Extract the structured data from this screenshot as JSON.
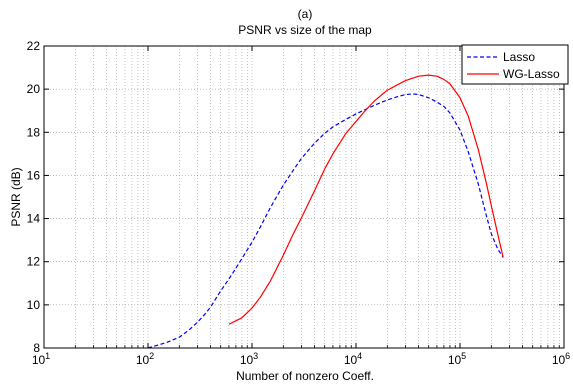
{
  "chart_data": {
    "type": "line",
    "panel_label": "(a)",
    "title": "PSNR vs size of the map",
    "xlabel": "Number of nonzero Coeff.",
    "ylabel": "PSNR (dB)",
    "xscale": "log",
    "xlim": [
      10,
      1000000
    ],
    "ylim": [
      8,
      22
    ],
    "xtick_base": "10",
    "xtick_exponents": [
      "1",
      "2",
      "3",
      "4",
      "5",
      "6"
    ],
    "yticks": [
      "8",
      "10",
      "12",
      "14",
      "16",
      "18",
      "20",
      "22"
    ],
    "grid": "dotted",
    "legend_position": "top-right",
    "series": [
      {
        "name": "Lasso",
        "color": "#0000ff",
        "style": "dashed",
        "x": [
          100,
          150,
          200,
          250,
          300,
          350,
          400,
          500,
          600,
          700,
          800,
          1000,
          1200,
          1500,
          2000,
          2500,
          3000,
          4000,
          5000,
          6000,
          8000,
          10000,
          15000,
          20000,
          25000,
          30000,
          35000,
          40000,
          50000,
          60000,
          70000,
          80000,
          100000,
          120000,
          150000,
          180000,
          200000,
          230000,
          260000
        ],
        "y": [
          8.0,
          8.25,
          8.5,
          8.85,
          9.2,
          9.55,
          9.9,
          10.65,
          11.2,
          11.7,
          12.15,
          12.9,
          13.6,
          14.5,
          15.55,
          16.25,
          16.8,
          17.5,
          17.95,
          18.25,
          18.6,
          18.85,
          19.25,
          19.5,
          19.65,
          19.75,
          19.78,
          19.75,
          19.6,
          19.4,
          19.2,
          18.9,
          18.1,
          17.1,
          15.6,
          14.1,
          13.3,
          12.6,
          12.2
        ]
      },
      {
        "name": "WG-Lasso",
        "color": "#ff0000",
        "style": "solid",
        "x": [
          600,
          800,
          1000,
          1200,
          1500,
          2000,
          2500,
          3000,
          4000,
          5000,
          6000,
          8000,
          10000,
          12000,
          15000,
          20000,
          25000,
          30000,
          40000,
          50000,
          60000,
          70000,
          80000,
          100000,
          120000,
          150000,
          180000,
          200000,
          230000,
          260000
        ],
        "y": [
          9.1,
          9.4,
          9.85,
          10.35,
          11.1,
          12.3,
          13.3,
          14.05,
          15.3,
          16.3,
          17.0,
          17.95,
          18.5,
          18.95,
          19.45,
          19.95,
          20.2,
          20.4,
          20.6,
          20.65,
          20.6,
          20.45,
          20.25,
          19.6,
          18.75,
          17.2,
          15.6,
          14.6,
          13.3,
          12.2
        ]
      }
    ]
  }
}
